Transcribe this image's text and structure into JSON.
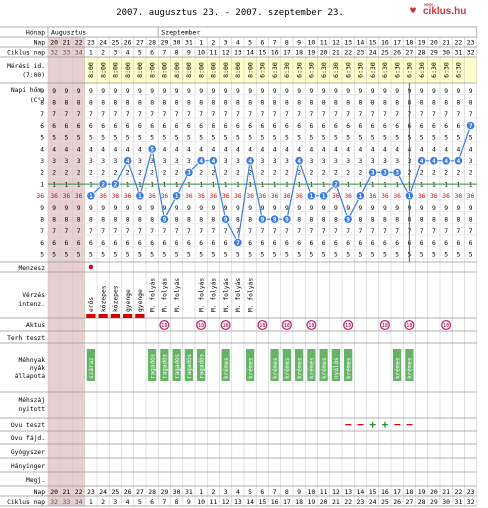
{
  "header": {
    "title": "2007. augusztus 23. - 2007. szeptember 23.",
    "logo": "ciklus.hu",
    "logo_prefix": "www.",
    "logo_icon": "heart-icon"
  },
  "row_labels": {
    "month": "Hónap",
    "day": "Nap",
    "cycle_day": "Ciklus nap",
    "measure_time_1": "Mérési id.",
    "measure_time_2": "(7:00)",
    "temp_1": "Napi hőm.",
    "temp_2": "(C°)",
    "menses": "Menzesz",
    "bleeding_1": "Vérzés",
    "bleeding_2": "intenz.",
    "intercourse": "Aktus",
    "pregnancy_test": "Terh teszt",
    "cervix_1": "Méhnyak",
    "cervix_2": "nyák",
    "cervix_3": "állapota",
    "cervix_pos_1": "Méhszáj",
    "cervix_pos_2": "nyitott",
    "ov_test": "Ovu teszt",
    "ov_pain": "Ovu fájd.",
    "medication": "Gyógyszer",
    "nausea": "Hányinger",
    "note": "Megj."
  },
  "months": [
    {
      "label": "Augusztus",
      "start": 0
    },
    {
      "label": "Szeptember",
      "start": 9
    }
  ],
  "days": [
    20,
    21,
    22,
    23,
    24,
    25,
    26,
    27,
    28,
    29,
    30,
    31,
    1,
    2,
    3,
    4,
    5,
    6,
    7,
    8,
    9,
    10,
    11,
    12,
    13,
    14,
    15,
    16,
    17,
    18,
    19,
    20,
    21,
    22,
    23
  ],
  "cycle_days": [
    "32",
    "33",
    "34",
    "1",
    "2",
    "3",
    "4",
    "5",
    "6",
    "7",
    "8",
    "9",
    "10",
    "11",
    "12",
    "13",
    "14",
    "15",
    "16",
    "17",
    "18",
    "19",
    "20",
    "21",
    "22",
    "23",
    "24",
    "25",
    "26",
    "27",
    "28",
    "29",
    "30",
    "31",
    "32"
  ],
  "shaded_cols": [
    0,
    1,
    2
  ],
  "measure_times": [
    "",
    "",
    "",
    "8:00",
    "8:00",
    "8:00",
    "8:00",
    "8:00",
    "8:00",
    "8:00",
    "8:00",
    "8:00",
    "8:00",
    "8:00",
    "8:00",
    "8:00",
    "8:00",
    "6:30",
    "6:30",
    "6:30",
    "6:30",
    "6:30",
    "6:30",
    "6:30",
    "6:30",
    "6:30",
    "6:30",
    "6:30",
    "6:30",
    "6:30",
    "6:30",
    "6:30",
    "6:30",
    "6:30",
    ""
  ],
  "temp_scale": [
    "9",
    "8",
    "7",
    "6",
    "5",
    "4",
    "3",
    "2",
    "1",
    "36",
    "9",
    "8",
    "7",
    "6",
    "5"
  ],
  "chart_data": {
    "type": "line",
    "title": "2007. augusztus 23. - 2007. szeptember 23.",
    "x": [
      23,
      24,
      25,
      26,
      27,
      28,
      29,
      30,
      31,
      1,
      2,
      3,
      4,
      5,
      6,
      7,
      8,
      9,
      10,
      11,
      12,
      13,
      14,
      15,
      16,
      17,
      18,
      19,
      20,
      21,
      22,
      23
    ],
    "y": [
      36.1,
      36.2,
      36.2,
      36.4,
      36.1,
      36.5,
      35.9,
      36.1,
      36.3,
      36.4,
      36.4,
      35.9,
      35.7,
      36.4,
      35.9,
      35.9,
      35.9,
      36.4,
      36.1,
      36.1,
      36.2,
      35.9,
      36.1,
      36.3,
      36.3,
      36.3,
      36.1,
      36.4,
      36.4,
      36.4,
      36.4,
      36.7
    ],
    "y_unit": "°C",
    "coverline": 36.2,
    "ovulation_marker_index": 26,
    "grid": true
  },
  "menses_cols": [
    3
  ],
  "bleeding": [
    {
      "col": 3,
      "level": "erős",
      "text": "erős"
    },
    {
      "col": 4,
      "level": "közepes",
      "text": "közepes"
    },
    {
      "col": 5,
      "level": "közepes",
      "text": "közepes"
    },
    {
      "col": 6,
      "level": "gyenge",
      "text": "gyenge"
    },
    {
      "col": 7,
      "level": "gyenge",
      "text": "gyenge"
    },
    {
      "col": 8,
      "level": "folyás",
      "text": "M. folyás"
    },
    {
      "col": 9,
      "level": "folyás",
      "text": "M. folyás"
    },
    {
      "col": 10,
      "level": "folyás",
      "text": "M. folyás"
    },
    {
      "col": 12,
      "level": "folyás",
      "text": "M. folyás"
    },
    {
      "col": 13,
      "level": "folyás",
      "text": "M. folyás"
    },
    {
      "col": 14,
      "level": "folyás",
      "text": "M. folyás"
    },
    {
      "col": 15,
      "level": "folyás",
      "text": "M. folyás"
    },
    {
      "col": 16,
      "level": "folyás",
      "text": "M. folyás"
    }
  ],
  "intercourse_cols": [
    9,
    12,
    14,
    17,
    19,
    21,
    24,
    27,
    29,
    32
  ],
  "intercourse_icon": "18",
  "cervix": [
    {
      "col": 3,
      "text": "száraz"
    },
    {
      "col": 8,
      "text": "ragadós"
    },
    {
      "col": 9,
      "text": "ragadós"
    },
    {
      "col": 10,
      "text": "ragadós"
    },
    {
      "col": 11,
      "text": "ragadós"
    },
    {
      "col": 12,
      "text": "ragadós"
    },
    {
      "col": 14,
      "text": "krémes"
    },
    {
      "col": 16,
      "text": "krémes"
    },
    {
      "col": 18,
      "text": "krémes"
    },
    {
      "col": 19,
      "text": "krémes"
    },
    {
      "col": 20,
      "text": "krémes"
    },
    {
      "col": 21,
      "text": "krémes"
    },
    {
      "col": 22,
      "text": "krémes"
    },
    {
      "col": 23,
      "text": "nyúlós"
    },
    {
      "col": 24,
      "text": "krémes"
    },
    {
      "col": 28,
      "text": "krémes"
    },
    {
      "col": 29,
      "text": "krémes"
    }
  ],
  "ov_tests": [
    {
      "col": 24,
      "result": "−"
    },
    {
      "col": 25,
      "result": "−"
    },
    {
      "col": 26,
      "result": "+"
    },
    {
      "col": 27,
      "result": "+"
    },
    {
      "col": 28,
      "result": "−"
    },
    {
      "col": 29,
      "result": "−"
    }
  ],
  "colors": {
    "header_bg": "#ffffcc",
    "cell_bg": "#f8f8e8",
    "shade": "#e8d0d0",
    "line": "#3a7be0",
    "coverline": "#2e8b2e",
    "ovu_line": "#2e8b2e",
    "red": "#d80000",
    "green": "#66b366",
    "pink": "#b8296e",
    "thirtysix": "#d80000"
  }
}
